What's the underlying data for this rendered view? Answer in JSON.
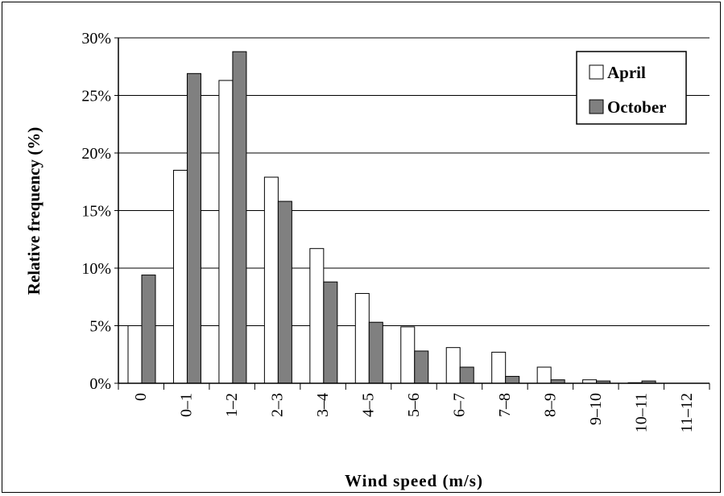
{
  "chart_data": {
    "type": "bar",
    "title": "",
    "xlabel": "Wind speed (m/s)",
    "ylabel": "Relative frequency (%)",
    "categories": [
      "0",
      "0–1",
      "1–2",
      "2–3",
      "3–4",
      "4–5",
      "5–6",
      "6–7",
      "7–8",
      "8–9",
      "9–10",
      "10–11",
      "11–12"
    ],
    "series": [
      {
        "name": "April",
        "color": "#ffffff",
        "values": [
          5.0,
          18.5,
          26.3,
          17.9,
          11.7,
          7.8,
          4.9,
          3.1,
          2.7,
          1.4,
          0.3,
          0.05,
          0.0
        ]
      },
      {
        "name": "October",
        "color": "#808080",
        "values": [
          9.4,
          26.9,
          28.8,
          15.8,
          8.8,
          5.3,
          2.8,
          1.4,
          0.6,
          0.3,
          0.2,
          0.2,
          0.0
        ]
      }
    ],
    "ylim": [
      0,
      30
    ],
    "yticks": [
      0,
      5,
      10,
      15,
      20,
      25,
      30
    ],
    "ytick_labels": [
      "0%",
      "5%",
      "10%",
      "15%",
      "20%",
      "25%",
      "30%"
    ],
    "grid": true,
    "legend_position": "top-right"
  }
}
